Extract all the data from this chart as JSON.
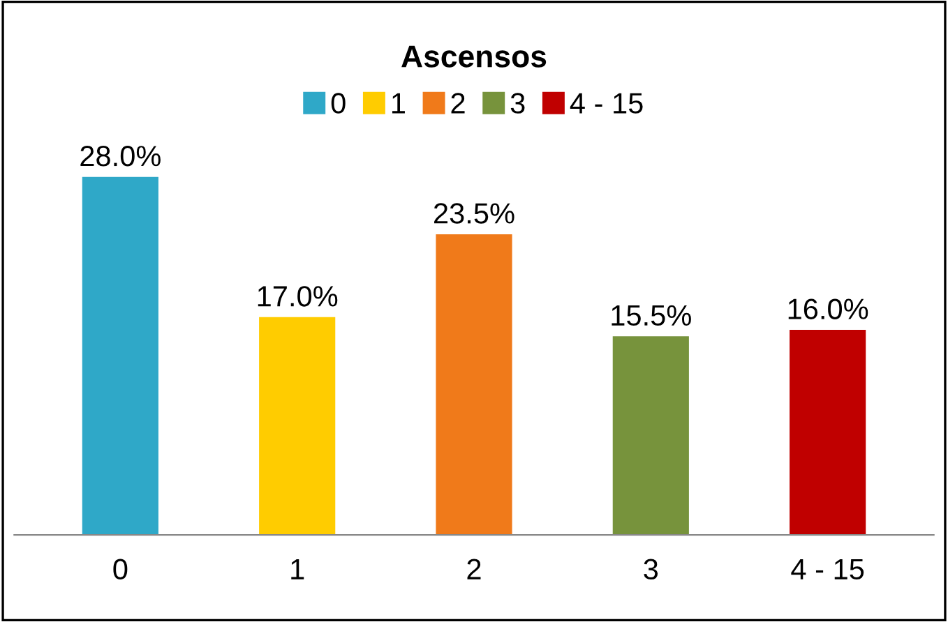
{
  "chart_data": {
    "type": "bar",
    "title": "Ascensos",
    "categories": [
      "0",
      "1",
      "2",
      "3",
      "4 - 15"
    ],
    "series": [
      {
        "name": "0",
        "color": "#2fa8c8",
        "values": [
          28.0,
          null,
          null,
          null,
          null
        ],
        "value_labels": [
          "28.0%",
          null,
          null,
          null,
          null
        ]
      },
      {
        "name": "1",
        "color": "#ffcc00",
        "values": [
          null,
          17.0,
          null,
          null,
          null
        ],
        "value_labels": [
          null,
          "17.0%",
          null,
          null,
          null
        ]
      },
      {
        "name": "2",
        "color": "#f07a1a",
        "values": [
          null,
          null,
          23.5,
          null,
          null
        ],
        "value_labels": [
          null,
          null,
          "23.5%",
          null,
          null
        ]
      },
      {
        "name": "3",
        "color": "#77933c",
        "values": [
          null,
          null,
          null,
          15.5,
          null
        ],
        "value_labels": [
          null,
          null,
          null,
          "15.5%",
          null
        ]
      },
      {
        "name": "4 - 15",
        "color": "#c00000",
        "values": [
          null,
          null,
          null,
          null,
          16.0
        ],
        "value_labels": [
          null,
          null,
          null,
          null,
          "16.0%"
        ]
      }
    ],
    "legend": "top"
  }
}
